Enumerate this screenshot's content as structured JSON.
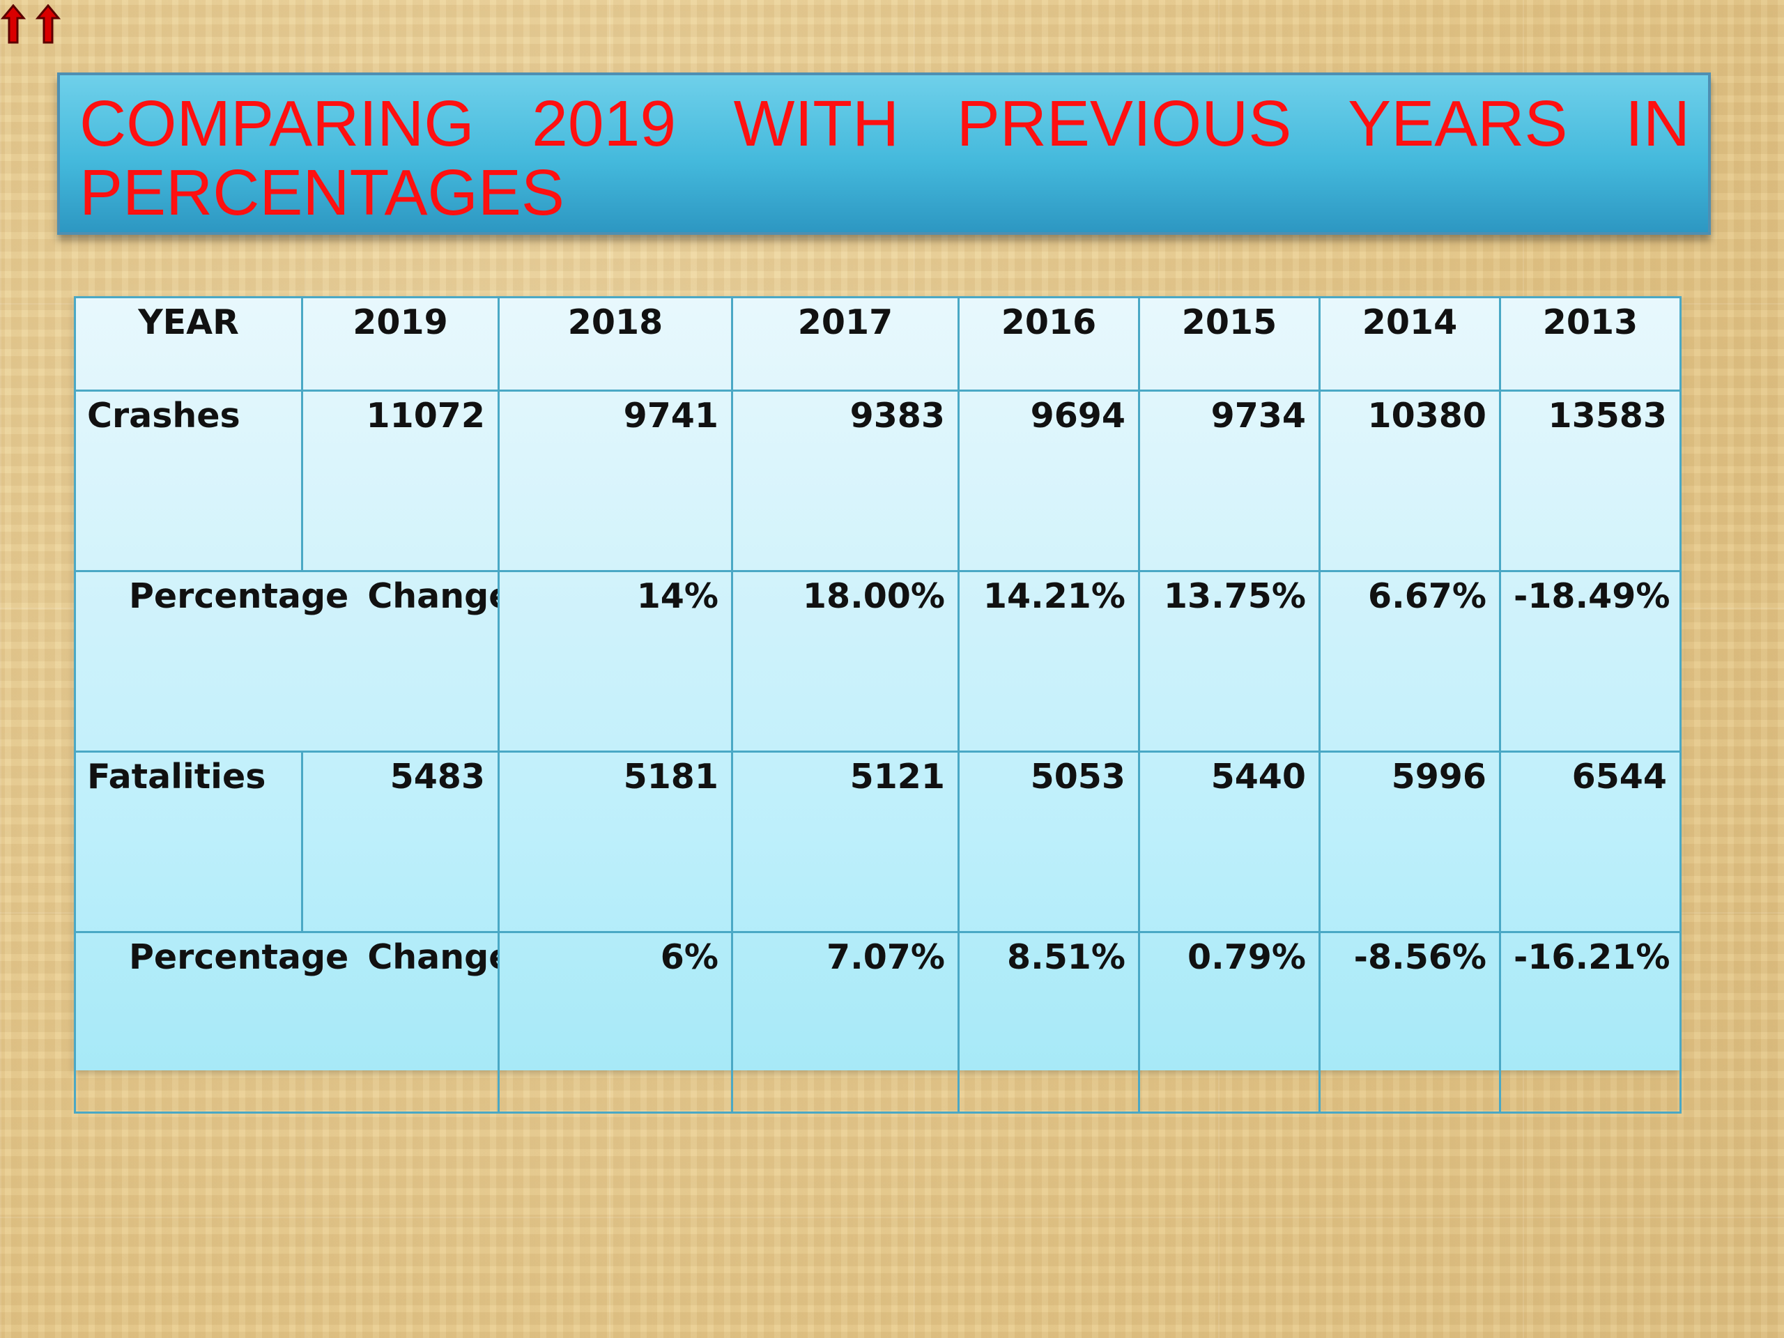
{
  "slide": {
    "title": "COMPARING 2019 WITH PREVIOUS YEARS IN PERCENTAGES",
    "top_icons": [
      {
        "name": "red-up-arrow-icon"
      },
      {
        "name": "red-up-arrow-icon"
      }
    ],
    "colors": {
      "title_text": "#ff1010",
      "title_banner": "#44b9dc",
      "table_border": "#4aa8c5",
      "table_fill_top": "#e8f8fd",
      "table_fill_bottom": "#a7e9f7"
    }
  },
  "table": {
    "header": {
      "label": "YEAR",
      "years": [
        "2019",
        "2018",
        "2017",
        "2016",
        "2015",
        "2014",
        "2013"
      ]
    },
    "rows": [
      {
        "label": "Crashes",
        "values": [
          "11072",
          "9741",
          "9383",
          "9694",
          "9734",
          "10380",
          "13583"
        ]
      },
      {
        "label": "Percentage Change",
        "values": [
          "14%",
          "18.00%",
          "14.21%",
          "13.75%",
          "6.67%",
          "-18.49%"
        ]
      },
      {
        "label": "Fatalities",
        "values": [
          "5483",
          "5181",
          "5121",
          "5053",
          "5440",
          "5996",
          "6544"
        ]
      },
      {
        "label": "Percentage Change",
        "values": [
          "6%",
          "7.07%",
          "8.51%",
          "0.79%",
          "-8.56%",
          "-16.21%"
        ]
      }
    ]
  }
}
